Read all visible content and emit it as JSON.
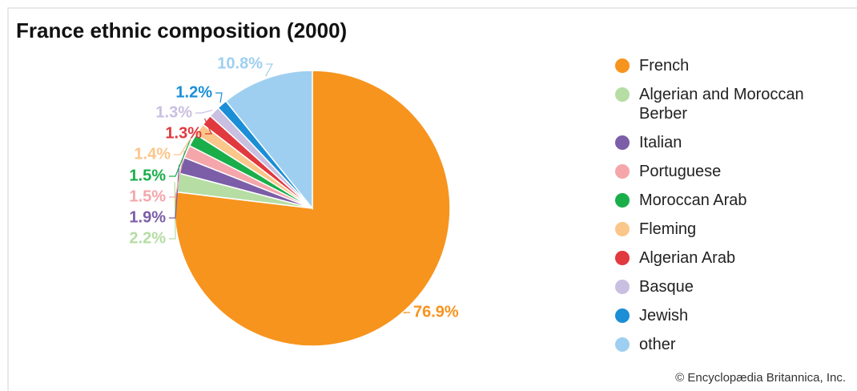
{
  "chart_data": {
    "type": "pie",
    "title": "France ethnic composition (2000)",
    "categories": [
      "French",
      "Algerian and Moroccan Berber",
      "Italian",
      "Portuguese",
      "Moroccan Arab",
      "Fleming",
      "Algerian Arab",
      "Basque",
      "Jewish",
      "other"
    ],
    "values": [
      76.9,
      2.2,
      1.9,
      1.5,
      1.5,
      1.4,
      1.3,
      1.3,
      1.2,
      10.8
    ],
    "value_labels": [
      "76.9%",
      "2.2%",
      "1.9%",
      "1.5%",
      "1.5%",
      "1.4%",
      "1.3%",
      "1.3%",
      "1.2%",
      "10.8%"
    ],
    "colors": [
      "#f7941d",
      "#b5dda4",
      "#7b5ea7",
      "#f4a6ab",
      "#1aae4a",
      "#fbc68a",
      "#e0393e",
      "#c9bfe0",
      "#1b8ed6",
      "#9fcff0"
    ],
    "source": "© Encyclopædia Britannica, Inc."
  }
}
